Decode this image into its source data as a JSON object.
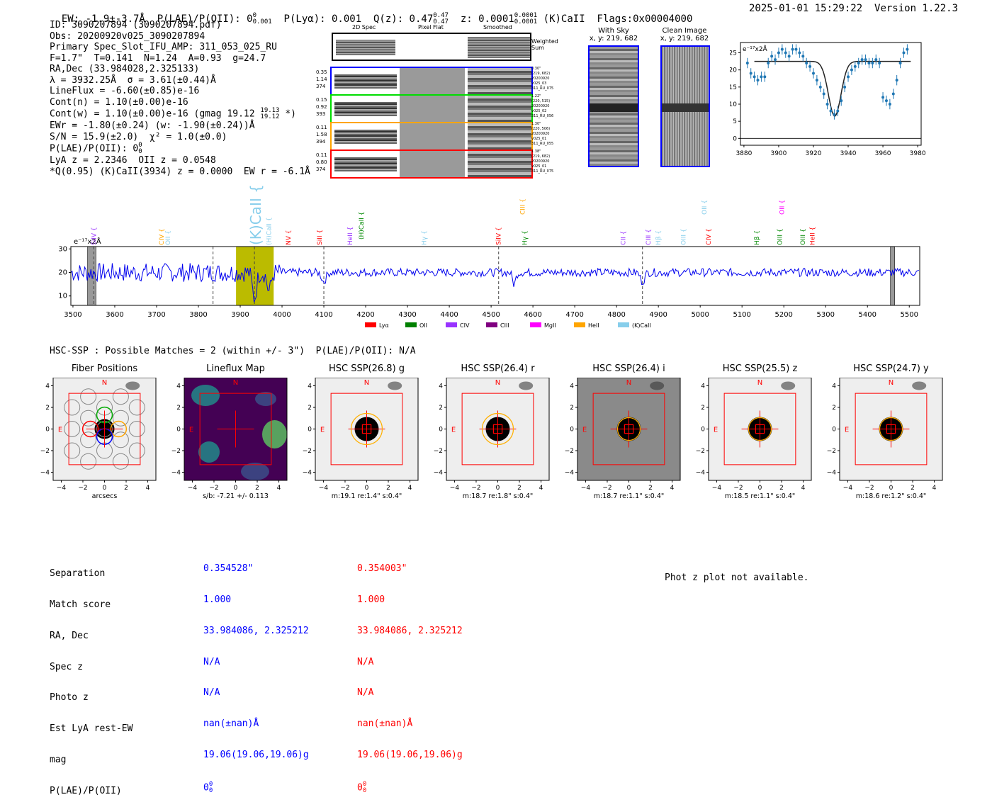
{
  "header": {
    "ew": "EW: -1.9±-3.7Å",
    "plae_label": "P(LAE)/P(OII): 0",
    "plae_sup": "0",
    "plae_sub": "0.001",
    "plya": "P(Lyα): 0.001",
    "qz": "Q(z): 0.47",
    "qz_sup": "0.47",
    "qz_sub": "0.47",
    "z": "z: 0.0001",
    "z_sup": "0.0001",
    "z_sub": "0.0001",
    "line": "(K)CaII",
    "flags": "Flags:0x00004000",
    "datetime": "2025-01-01 15:29:22",
    "version": "Version 1.22.3"
  },
  "info": {
    "l1": "ID: 3090207894 (3090207894.pdf)",
    "l2": "Obs: 20200920v025_3090207894",
    "l3": "Primary Spec_Slot_IFU_AMP: 311_053_025_RU",
    "l4": "F=1.7\"  T=0.141  N=1.24  A=0.93  g=24.7",
    "l5": "RA,Dec (33.984028,2.325133)",
    "l6": "λ = 3932.25Å  σ = 3.61(±0.44)Å",
    "l7": "LineFlux = -6.60(±0.85)e-16",
    "l8": "Cont(n) = 1.10(±0.00)e-16",
    "l9": "Cont(w) = 1.10(±0.00)e-16 (gmag 19.12",
    "l9_sup": "19.13",
    "l9_sub": "19.12",
    "l9_end": "*)",
    "l10": "EWr = -1.80(±0.24) (w: -1.90(±0.24))Å",
    "l11": "S/N = 15.9(±2.0)  χ² = 1.0(±0.0)",
    "l12": "P(LAE)/P(OII): 0",
    "l12_sup": "0",
    "l12_sub": "0",
    "l13": "LyA z = 2.2346  OII z = 0.0548",
    "l14": "*Q(0.95) (K)CaII(3934) z = 0.0000  EW r = -6.1Å"
  },
  "cutouts": {
    "col_labels": [
      "2D Spec",
      "Pixel Flat",
      "Smoothed"
    ],
    "weighted": "Weighted\nSum",
    "rows": [
      {
        "left": [
          "0.35",
          "1.14",
          "374"
        ],
        "right": [
          "0.30\"",
          "(219, 682)",
          "20200920",
          "v025_03",
          "311_RU_075"
        ],
        "color": "#0000ff"
      },
      {
        "left": [
          "0.15",
          "0.92",
          "393"
        ],
        "right": [
          "1.22\"",
          "(220, 515)",
          "20200920",
          "v025_02",
          "311_RU_056"
        ],
        "color": "#00dd00"
      },
      {
        "left": [
          "0.11",
          "1.58",
          "394"
        ],
        "right": [
          "1.30\"",
          "(220, 506)",
          "20200920",
          "v025_01",
          "311_RU_055"
        ],
        "color": "#ffa500"
      },
      {
        "left": [
          "0.11",
          "0.80",
          "374"
        ],
        "right": [
          "1.38\"",
          "(219, 682)",
          "20200920",
          "v025_01",
          "311_RU_075"
        ],
        "color": "#ff0000"
      }
    ]
  },
  "sky": {
    "with_sky_title": "With Sky",
    "with_sky_xy": "x, y: 219, 682",
    "clean_title": "Clean Image",
    "clean_xy": "x, y: 219, 682"
  },
  "chart_data": [
    {
      "type": "scatter",
      "title": "",
      "ylabel_text": "e⁻¹⁷x2Å",
      "xlim": [
        3878,
        3982
      ],
      "ylim": [
        -2,
        28
      ],
      "xticks": [
        3880,
        3900,
        3920,
        3940,
        3960,
        3980
      ],
      "yticks": [
        0,
        5,
        10,
        15,
        20,
        25
      ],
      "points": [
        [
          3882,
          22
        ],
        [
          3884,
          19
        ],
        [
          3886,
          18
        ],
        [
          3888,
          17
        ],
        [
          3890,
          18
        ],
        [
          3892,
          18
        ],
        [
          3894,
          22
        ],
        [
          3896,
          24
        ],
        [
          3898,
          23
        ],
        [
          3900,
          25
        ],
        [
          3902,
          26
        ],
        [
          3904,
          25
        ],
        [
          3906,
          24
        ],
        [
          3908,
          26
        ],
        [
          3910,
          26
        ],
        [
          3912,
          25
        ],
        [
          3914,
          24
        ],
        [
          3916,
          22
        ],
        [
          3918,
          21
        ],
        [
          3920,
          19
        ],
        [
          3922,
          17
        ],
        [
          3924,
          15
        ],
        [
          3926,
          13
        ],
        [
          3928,
          10
        ],
        [
          3930,
          8
        ],
        [
          3932,
          7
        ],
        [
          3934,
          8
        ],
        [
          3936,
          11
        ],
        [
          3938,
          15
        ],
        [
          3940,
          18
        ],
        [
          3942,
          20
        ],
        [
          3944,
          21
        ],
        [
          3946,
          22
        ],
        [
          3948,
          23
        ],
        [
          3950,
          23
        ],
        [
          3952,
          22
        ],
        [
          3954,
          22
        ],
        [
          3956,
          23
        ],
        [
          3958,
          22
        ],
        [
          3960,
          12
        ],
        [
          3962,
          11
        ],
        [
          3964,
          10
        ],
        [
          3966,
          13
        ],
        [
          3968,
          17
        ],
        [
          3970,
          22
        ],
        [
          3972,
          25
        ],
        [
          3974,
          26
        ]
      ],
      "fit": {
        "continuum": 22.5,
        "center": 3932.25,
        "depth": 16,
        "sigma": 3.61,
        "xmin": 3886,
        "xmax": 3976
      }
    },
    {
      "type": "line",
      "ylabel_text": "e⁻¹⁷x2Å",
      "xlim": [
        3495,
        5525
      ],
      "ylim": [
        6,
        31
      ],
      "xticks": [
        3500,
        3600,
        3700,
        3800,
        3900,
        4000,
        4100,
        4200,
        4300,
        4400,
        4500,
        4600,
        4700,
        4800,
        4900,
        5000,
        5100,
        5200,
        5300,
        5400,
        5500
      ],
      "yticks": [
        10,
        20,
        30
      ],
      "highlight": [
        3890,
        3980
      ],
      "masked": [
        [
          3535,
          3555
        ],
        [
          5455,
          5465
        ]
      ],
      "dashed": [
        3550,
        3835,
        3934,
        4100,
        4518,
        4862
      ],
      "lines": [
        {
          "name": "SiIV",
          "x": 3550,
          "color": "#9933ff",
          "h": "mid"
        },
        {
          "name": "CIV",
          "x": 3712,
          "color": "#ffa500",
          "h": "mid"
        },
        {
          "name": "OII",
          "x": 3727,
          "color": "#87ceeb",
          "h": "mid"
        },
        {
          "name": "(K)CaII",
          "x": 3934,
          "color": "#87ceeb",
          "h": "big"
        },
        {
          "name": "(H)CaII",
          "x": 3969,
          "color": "#87ceeb",
          "h": "mid"
        },
        {
          "name": "NV",
          "x": 4015,
          "color": "#ff0000",
          "h": "mid"
        },
        {
          "name": "SiII",
          "x": 4090,
          "color": "#ff0000",
          "h": "mid"
        },
        {
          "name": "HeII",
          "x": 4163,
          "color": "#9933ff",
          "h": "mid"
        },
        {
          "name": "(H)CaII",
          "x": 4190,
          "color": "#008800",
          "h": "hi"
        },
        {
          "name": "Hγ",
          "x": 4340,
          "color": "#87ceeb",
          "h": "mid"
        },
        {
          "name": "SiIV",
          "x": 4518,
          "color": "#ff0000",
          "h": "mid"
        },
        {
          "name": "CIII",
          "x": 4575,
          "color": "#ffa500",
          "h": "top"
        },
        {
          "name": "Hγ",
          "x": 4580,
          "color": "#008800",
          "h": "mid"
        },
        {
          "name": "CII",
          "x": 4816,
          "color": "#9933ff",
          "h": "mid"
        },
        {
          "name": "CIII",
          "x": 4876,
          "color": "#9933ff",
          "h": "mid"
        },
        {
          "name": "Hβ",
          "x": 4900,
          "color": "#87ceeb",
          "h": "mid"
        },
        {
          "name": "OIII",
          "x": 4960,
          "color": "#87ceeb",
          "h": "mid"
        },
        {
          "name": "OII",
          "x": 5010,
          "color": "#87ceeb",
          "h": "top"
        },
        {
          "name": "CIV",
          "x": 5020,
          "color": "#ff0000",
          "h": "mid"
        },
        {
          "name": "Hβ",
          "x": 5135,
          "color": "#008800",
          "h": "mid"
        },
        {
          "name": "OII",
          "x": 5195,
          "color": "#ff00ff",
          "h": "top"
        },
        {
          "name": "OIII",
          "x": 5190,
          "color": "#008800",
          "h": "mid"
        },
        {
          "name": "OIII",
          "x": 5245,
          "color": "#008800",
          "h": "mid"
        },
        {
          "name": "HeII",
          "x": 5268,
          "color": "#ff0000",
          "h": "mid"
        }
      ],
      "legend": [
        {
          "name": "Lyα",
          "color": "#ff0000"
        },
        {
          "name": "OII",
          "color": "#008000"
        },
        {
          "name": "CIV",
          "color": "#9933ff"
        },
        {
          "name": "CIII",
          "color": "#800080"
        },
        {
          "name": "MgII",
          "color": "#ff00ff"
        },
        {
          "name": "HeII",
          "color": "#ffa500"
        },
        {
          "name": "(K)CaII",
          "color": "#87ceeb"
        }
      ]
    }
  ],
  "hsc": {
    "heading": "HSC-SSP : Possible Matches = 2 (within +/- 3\")  P(LAE)/P(OII): N/A",
    "panels": [
      {
        "title": "Fiber Positions",
        "caption": "arcsecs",
        "kind": "fiber"
      },
      {
        "title": "Lineflux Map",
        "caption": "s/b: -7.21 +/- 0.113",
        "kind": "lineflux"
      },
      {
        "title": "HSC SSP(26.8) g",
        "caption": "m:19.1  re:1.4\"  s:0.4\"",
        "kind": "light"
      },
      {
        "title": "HSC SSP(26.4) r",
        "caption": "m:18.7  re:1.8\"  s:0.4\"",
        "kind": "light"
      },
      {
        "title": "HSC SSP(26.4) i",
        "caption": "m:18.7  re:1.1\"  s:0.4\"",
        "kind": "dark"
      },
      {
        "title": "HSC SSP(25.5) z",
        "caption": "m:18.5  re:1.1\"  s:0.4\"",
        "kind": "light"
      },
      {
        "title": "HSC SSP(24.7) y",
        "caption": "m:18.6  re:1.2\"  s:0.4\"",
        "kind": "light"
      }
    ],
    "ticks": [
      "4",
      "2",
      "0",
      "−2",
      "−4"
    ],
    "xticks": [
      "−4",
      "−2",
      "0",
      "2",
      "4"
    ],
    "n_label": "N",
    "e_label": "E"
  },
  "matches": {
    "labels": [
      "Separation",
      "Match score",
      "RA, Dec",
      "Spec z",
      "Photo z",
      "Est LyA rest-EW",
      "mag",
      "P(LAE)/P(OII)"
    ],
    "blue": [
      "0.354528\"",
      "1.000",
      "33.984086, 2.325212",
      "N/A",
      "N/A",
      "nan(±nan)Å",
      "19.06(19.06,19.06)g",
      "0"
    ],
    "red": [
      "0.354003\"",
      "1.000",
      "33.984086, 2.325212",
      "N/A",
      "N/A",
      "nan(±nan)Å",
      "19.06(19.06,19.06)g",
      "0"
    ],
    "plae_supsub": "0",
    "photz_msg": "Phot z plot not available."
  }
}
